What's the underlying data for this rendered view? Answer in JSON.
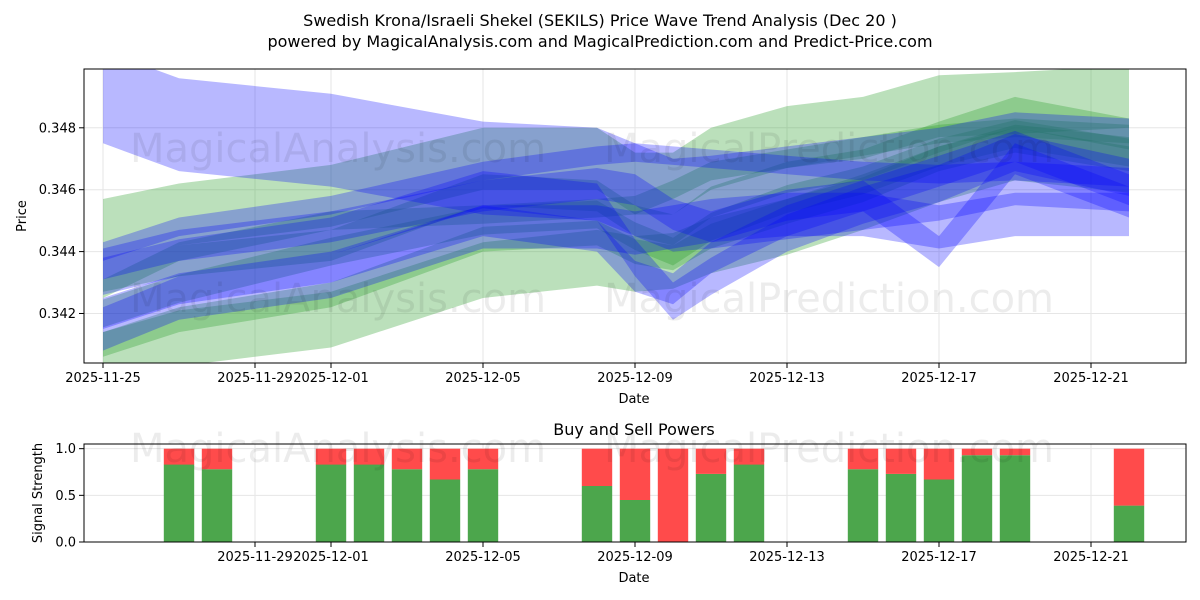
{
  "header": {
    "title": "Swedish Krona/Israeli Shekel (SEKILS) Price Wave Trend Analysis (Dec 20 )",
    "subtitle": "powered by MagicalAnalysis.com and MagicalPrediction.com and Predict-Price.com"
  },
  "watermarks": [
    "MagicalAnalysis.com",
    "MagicalPrediction.com"
  ],
  "colors": {
    "green_band": "#2ca02c",
    "blue_band": "#0000ff",
    "buy": "#4ca64c",
    "sell": "#ff4b4b",
    "grid": "#e6e6e6"
  },
  "chart_data": [
    {
      "type": "area",
      "title": "",
      "xlabel": "Date",
      "ylabel": "Price",
      "xlim": [
        "2025-11-24T12:00",
        "2025-12-23T12:00"
      ],
      "ylim": [
        0.3404,
        0.3499
      ],
      "x_ticks": [
        "2025-11-25",
        "2025-11-29",
        "2025-12-01",
        "2025-12-05",
        "2025-12-09",
        "2025-12-13",
        "2025-12-17",
        "2025-12-21"
      ],
      "y_ticks": [
        "0.342",
        "0.344",
        "0.346",
        "0.348"
      ],
      "dates": [
        "2025-11-25",
        "2025-11-27",
        "2025-12-01",
        "2025-12-05",
        "2025-12-08",
        "2025-12-09",
        "2025-12-10",
        "2025-12-11",
        "2025-12-13",
        "2025-12-15",
        "2025-12-17",
        "2025-12-19",
        "2025-12-22"
      ],
      "series": [
        {
          "name": "green wave 1",
          "color": "green",
          "values": [
            0.3447,
            0.3452,
            0.3458,
            0.347,
            0.347,
            0.3462,
            0.3462,
            0.347,
            0.3477,
            0.348,
            0.3487,
            0.3488,
            0.349
          ],
          "width": 0.002
        },
        {
          "name": "green wave 2",
          "color": "green",
          "values": [
            0.3432,
            0.3437,
            0.3442,
            0.346,
            0.3458,
            0.345,
            0.3447,
            0.3456,
            0.3464,
            0.3468,
            0.3477,
            0.3485,
            0.3478
          ],
          "width": 0.001
        },
        {
          "name": "green wave 3",
          "color": "green",
          "values": [
            0.342,
            0.3428,
            0.344,
            0.345,
            0.3452,
            0.3445,
            0.344,
            0.3448,
            0.3457,
            0.3463,
            0.3472,
            0.3478,
            0.3472
          ],
          "width": 0.0009
        },
        {
          "name": "green wave 4",
          "color": "green",
          "values": [
            0.341,
            0.3418,
            0.3426,
            0.3444,
            0.3446,
            0.344,
            0.3438,
            0.3445,
            0.3453,
            0.346,
            0.347,
            0.3476,
            0.347
          ],
          "width": 0.0008
        },
        {
          "name": "green wave 5",
          "color": "green",
          "values": [
            0.3405,
            0.3412,
            0.3418,
            0.3434,
            0.3438,
            0.3436,
            0.3437,
            0.3442,
            0.3448,
            0.3456,
            0.3465,
            0.3472,
            0.3468
          ],
          "width": 0.0018
        },
        {
          "name": "green wave 6",
          "color": "green",
          "values": [
            0.3428,
            0.344,
            0.345,
            0.3452,
            0.3454,
            0.3455,
            0.346,
            0.3466,
            0.347,
            0.3474,
            0.3478,
            0.348,
            0.3478
          ],
          "width": 0.0006
        },
        {
          "name": "blue wave 1",
          "color": "blue",
          "values": [
            0.349,
            0.3481,
            0.3476,
            0.3467,
            0.3465,
            0.346,
            0.3455,
            0.3456,
            0.3459,
            0.3462,
            0.3465,
            0.347,
            0.3468
          ],
          "width": 0.003
        },
        {
          "name": "blue wave 2",
          "color": "blue",
          "values": [
            0.344,
            0.3448,
            0.3455,
            0.3466,
            0.3471,
            0.3472,
            0.3471,
            0.347,
            0.3468,
            0.3466,
            0.3465,
            0.3466,
            0.3464
          ],
          "width": 0.0006
        },
        {
          "name": "blue wave 3",
          "color": "blue",
          "values": [
            0.3432,
            0.3438,
            0.3445,
            0.346,
            0.3456,
            0.3438,
            0.3424,
            0.3432,
            0.3446,
            0.3455,
            0.3462,
            0.3472,
            0.3464
          ],
          "width": 0.0012
        },
        {
          "name": "blue wave 4",
          "color": "blue",
          "values": [
            0.342,
            0.3428,
            0.3435,
            0.345,
            0.3445,
            0.3432,
            0.3428,
            0.3438,
            0.345,
            0.3458,
            0.3466,
            0.3474,
            0.346
          ],
          "width": 0.001
        },
        {
          "name": "blue wave 5",
          "color": "blue",
          "values": [
            0.3415,
            0.3425,
            0.3432,
            0.3448,
            0.3448,
            0.3446,
            0.3448,
            0.345,
            0.3452,
            0.3452,
            0.3448,
            0.3452,
            0.3452
          ],
          "width": 0.0014
        },
        {
          "name": "blue wave 6",
          "color": "blue",
          "values": [
            0.3436,
            0.3442,
            0.3448,
            0.3458,
            0.3462,
            0.346,
            0.3452,
            0.3448,
            0.3455,
            0.3458,
            0.344,
            0.347,
            0.3456
          ],
          "width": 0.001
        }
      ]
    },
    {
      "type": "bar",
      "title": "Buy and Sell Powers",
      "xlabel": "Date",
      "ylabel": "Signal Strength",
      "xlim": [
        "2025-11-24T12:00",
        "2025-12-23T12:00"
      ],
      "ylim": [
        0,
        1.05
      ],
      "x_ticks": [
        "2025-11-29",
        "2025-12-01",
        "2025-12-05",
        "2025-12-09",
        "2025-12-13",
        "2025-12-17",
        "2025-12-21"
      ],
      "y_ticks": [
        "0.0",
        "0.5",
        "1.0"
      ],
      "categories": [
        "2025-11-27",
        "2025-11-28",
        "2025-12-01",
        "2025-12-02",
        "2025-12-03",
        "2025-12-04",
        "2025-12-05",
        "2025-12-08",
        "2025-12-09",
        "2025-12-10",
        "2025-12-11",
        "2025-12-12",
        "2025-12-15",
        "2025-12-16",
        "2025-12-17",
        "2025-12-18",
        "2025-12-19",
        "2025-12-22"
      ],
      "series": [
        {
          "name": "Buy",
          "values": [
            0.83,
            0.78,
            0.83,
            0.83,
            0.78,
            0.67,
            0.78,
            0.6,
            0.45,
            0.0,
            0.73,
            0.83,
            0.78,
            0.73,
            0.67,
            0.93,
            0.93,
            0.39
          ]
        },
        {
          "name": "Sell",
          "values": [
            0.17,
            0.22,
            0.17,
            0.17,
            0.22,
            0.33,
            0.22,
            0.4,
            0.55,
            1.0,
            0.27,
            0.17,
            0.22,
            0.27,
            0.33,
            0.07,
            0.07,
            0.61
          ]
        }
      ]
    }
  ]
}
